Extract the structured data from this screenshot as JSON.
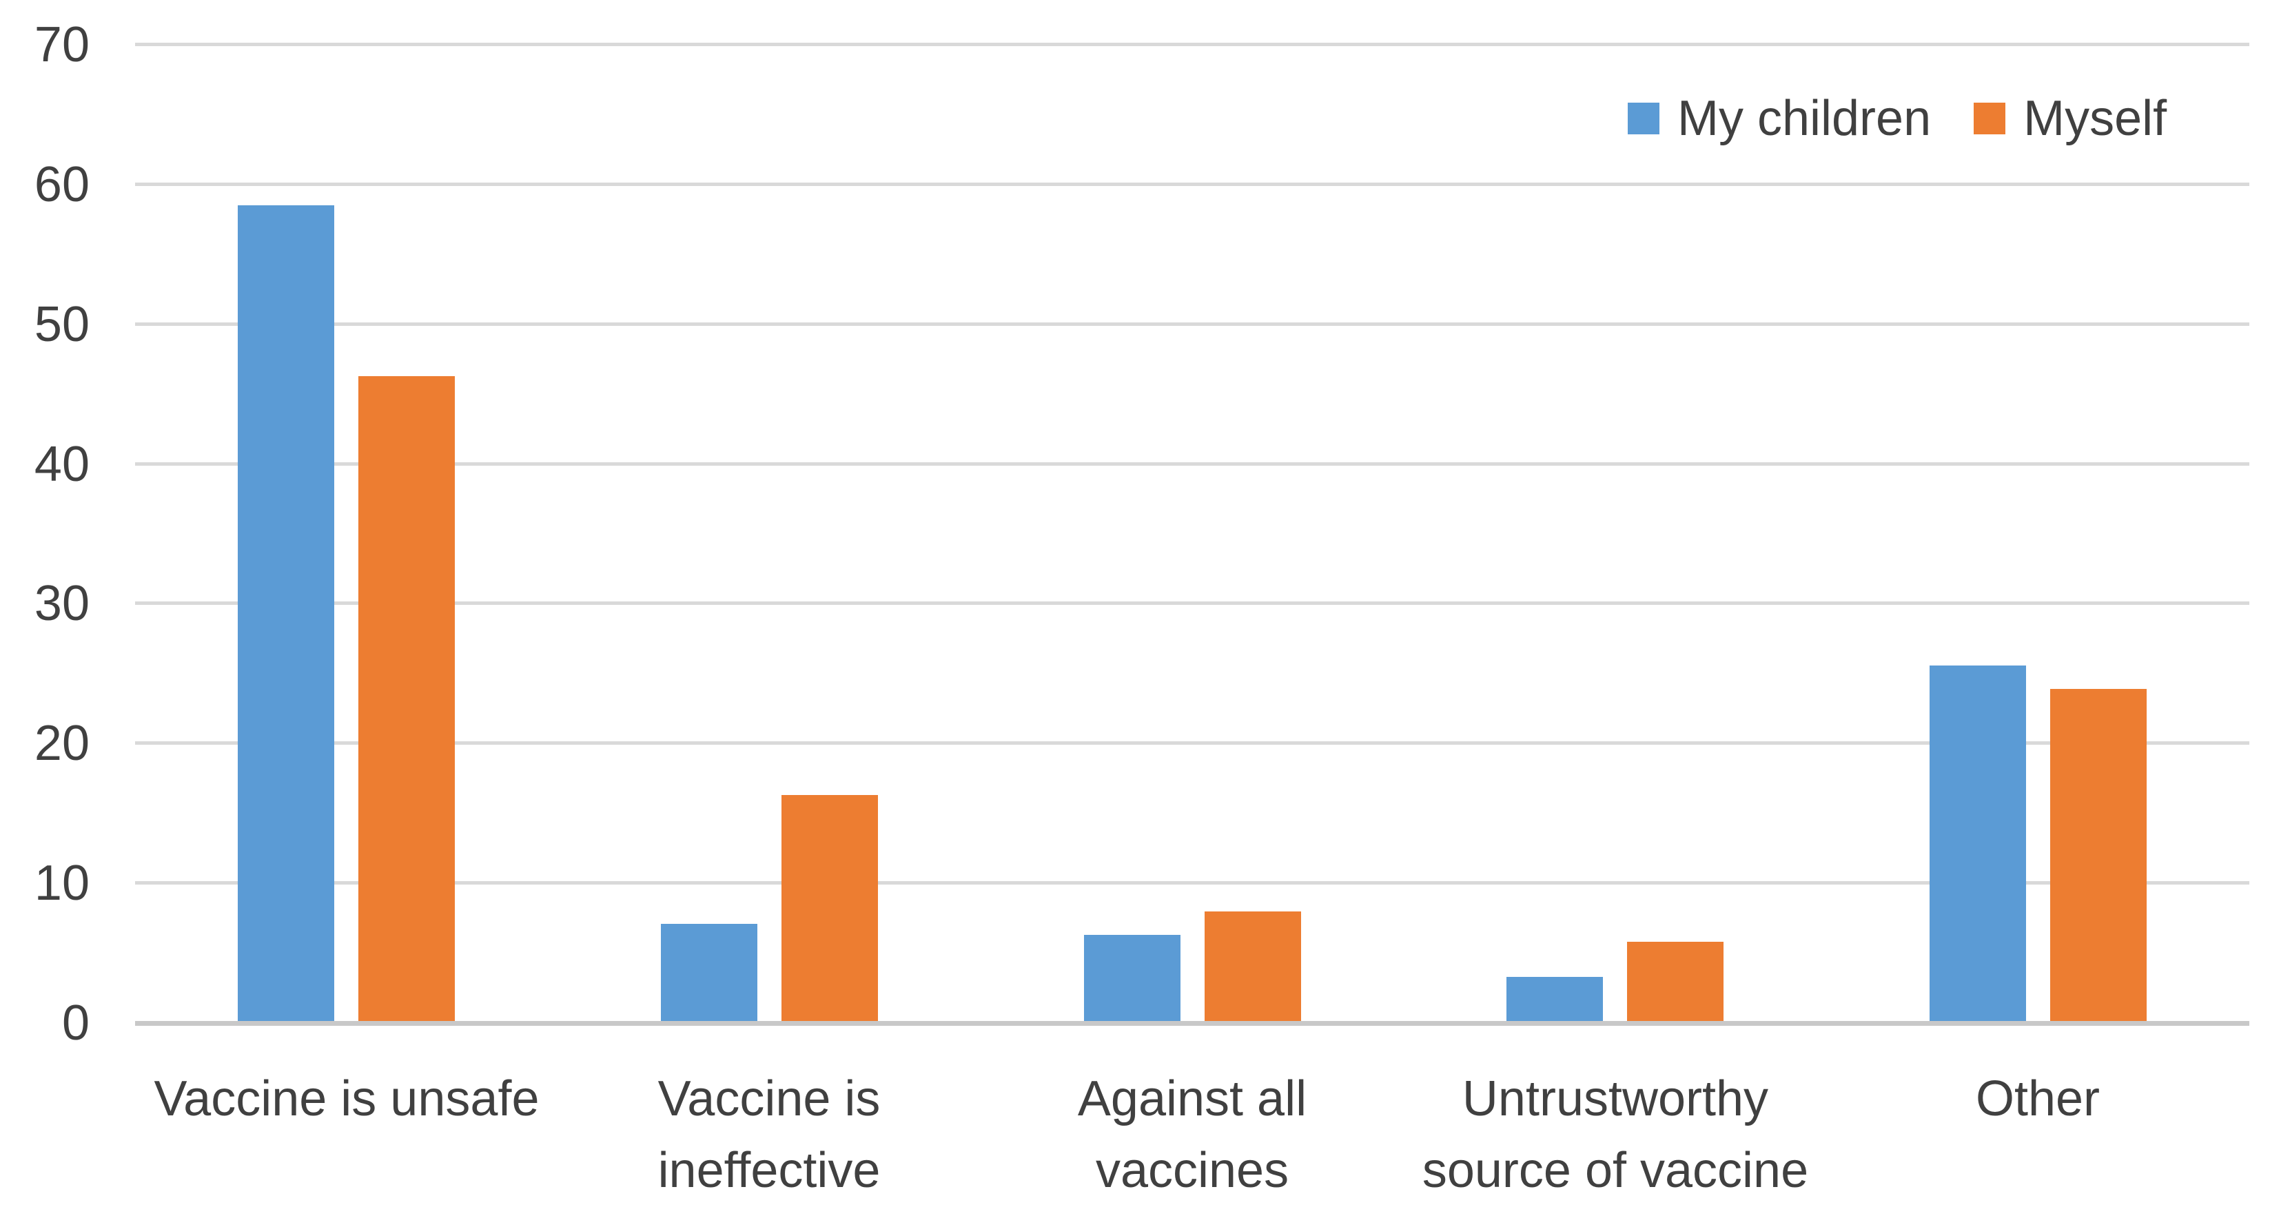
{
  "chart_data": {
    "type": "bar",
    "title": "",
    "xlabel": "",
    "ylabel": "",
    "categories": [
      "Vaccine is unsafe",
      "Vaccine is ineffective",
      "Against all vaccines",
      "Untrustworthy source of vaccine",
      "Other"
    ],
    "series": [
      {
        "name": "My children",
        "color": "#5B9BD5",
        "values": [
          58.5,
          7.1,
          6.3,
          3.3,
          25.6
        ]
      },
      {
        "name": "Myself",
        "color": "#ED7D31",
        "values": [
          46.3,
          16.3,
          8.0,
          5.8,
          23.9
        ]
      }
    ],
    "ylim": [
      0,
      70
    ],
    "yticks": [
      0,
      10,
      20,
      30,
      40,
      50,
      60,
      70
    ],
    "grid": true,
    "legend_position": "top-right",
    "colors": {
      "axis_text": "#404040",
      "gridline": "#D9D9D9",
      "axis_line": "#C8C8C8",
      "background": "#FFFFFF"
    }
  }
}
